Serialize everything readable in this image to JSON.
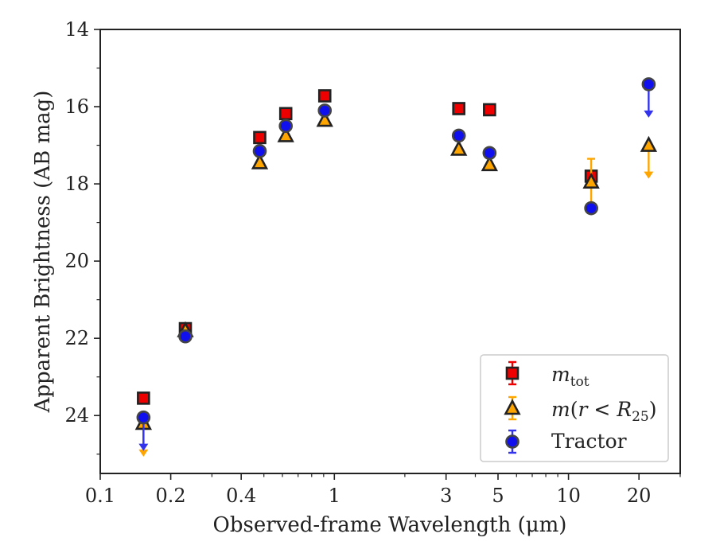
{
  "chart_data": {
    "type": "scatter",
    "xlabel": "Observed-frame Wavelength (μm)",
    "ylabel": "Apparent Brightness (AB mag)",
    "x_scale": "log",
    "xlim": [
      0.1,
      30
    ],
    "ylim": [
      25.5,
      14
    ],
    "y_inverted": true,
    "x_major_ticks": [
      0.1,
      0.2,
      0.4,
      1,
      3,
      5,
      10,
      20
    ],
    "x_tick_labels": [
      "0.1",
      "0.2",
      "0.4",
      "1",
      "3",
      "5",
      "10",
      "20"
    ],
    "y_ticks": [
      14,
      16,
      18,
      20,
      22,
      24
    ],
    "y_tick_labels": [
      "14",
      "16",
      "18",
      "20",
      "22",
      "24"
    ],
    "grid": false,
    "legend_position": "lower-right",
    "series": [
      {
        "name": "m_tot",
        "marker": "square",
        "face_color": "#ee0000",
        "edge_color": "#222222",
        "errbar_color": "#ee0000",
        "points": [
          {
            "x": 0.153,
            "y": 23.55
          },
          {
            "x": 0.231,
            "y": 21.75
          },
          {
            "x": 0.48,
            "y": 16.8
          },
          {
            "x": 0.62,
            "y": 16.18
          },
          {
            "x": 0.91,
            "y": 15.72
          },
          {
            "x": 3.4,
            "y": 16.05
          },
          {
            "x": 4.6,
            "y": 16.08
          },
          {
            "x": 12.5,
            "y": 17.8
          }
        ]
      },
      {
        "name": "m(r<R25)",
        "marker": "triangle",
        "face_color": "#ffa500",
        "edge_color": "#222222",
        "errbar_color": "#ffa500",
        "points": [
          {
            "x": 0.153,
            "y": 24.2,
            "upper_limit": true
          },
          {
            "x": 0.231,
            "y": 21.8
          },
          {
            "x": 0.48,
            "y": 17.45
          },
          {
            "x": 0.62,
            "y": 16.75
          },
          {
            "x": 0.91,
            "y": 16.35
          },
          {
            "x": 3.4,
            "y": 17.1
          },
          {
            "x": 4.6,
            "y": 17.5
          },
          {
            "x": 12.5,
            "y": 17.95,
            "err": 0.6
          },
          {
            "x": 22,
            "y": 17.0,
            "upper_limit": true
          }
        ]
      },
      {
        "name": "Tractor",
        "marker": "circle",
        "face_color": "#1010ee",
        "edge_color": "#444444",
        "errbar_color": "#3333ee",
        "points": [
          {
            "x": 0.153,
            "y": 24.05,
            "upper_limit": true
          },
          {
            "x": 0.231,
            "y": 21.95
          },
          {
            "x": 0.48,
            "y": 17.15
          },
          {
            "x": 0.62,
            "y": 16.5
          },
          {
            "x": 0.91,
            "y": 16.1
          },
          {
            "x": 3.4,
            "y": 16.75
          },
          {
            "x": 4.6,
            "y": 17.2
          },
          {
            "x": 12.5,
            "y": 18.63
          },
          {
            "x": 22,
            "y": 15.42,
            "upper_limit": true
          }
        ]
      }
    ]
  },
  "legend": {
    "mtot": {
      "base": "m",
      "sub": "tot"
    },
    "mr": {
      "pre": "m",
      "mid": "(",
      "r": "r",
      "lt": " < ",
      "R": "R",
      "sub": "25",
      "post": ")"
    },
    "tractor": {
      "label": "Tractor"
    }
  }
}
